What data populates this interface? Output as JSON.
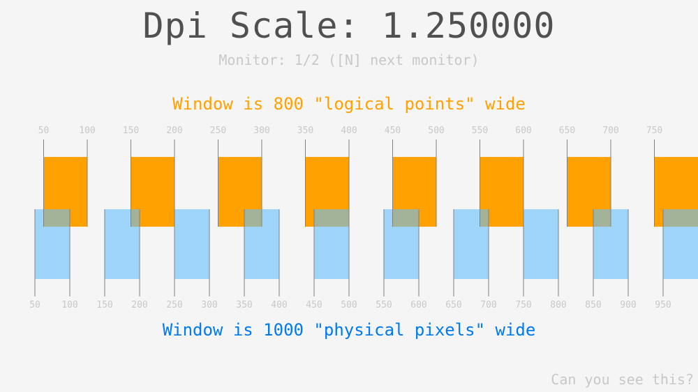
{
  "title": "Dpi Scale: 1.250000",
  "monitor_info": "Monitor: 1/2 ([N] next monitor)",
  "logical_caption": "Window is 800 \"logical points\" wide",
  "physical_caption": "Window is 1000 \"physical pixels\" wide",
  "footer_text": "Can you see this?",
  "dpi_scale": 1.25,
  "logical_ticks": [
    "50",
    "100",
    "150",
    "200",
    "250",
    "300",
    "350",
    "400",
    "450",
    "500",
    "550",
    "600",
    "650",
    "700",
    "750"
  ],
  "physical_ticks": [
    "50",
    "100",
    "150",
    "200",
    "250",
    "300",
    "350",
    "400",
    "450",
    "500",
    "550",
    "600",
    "650",
    "700",
    "750",
    "800",
    "850",
    "900",
    "950"
  ],
  "colors": {
    "background": "#f5f5f5",
    "title": "#505050",
    "muted": "#c8c8c8",
    "logical": "#ffa100",
    "physical": "#0079f1",
    "physical_block": "#66bfff",
    "guide_line": "#808080"
  }
}
